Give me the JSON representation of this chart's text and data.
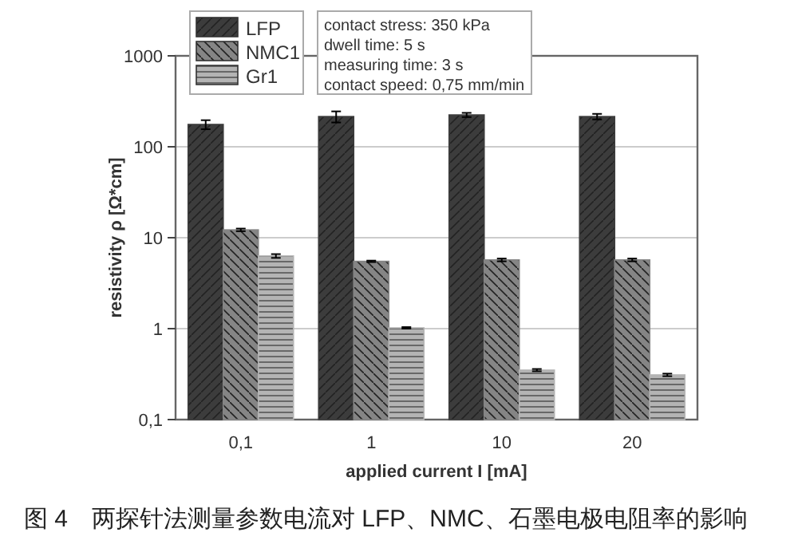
{
  "chart_data": {
    "type": "bar",
    "xlabel": "applied current I [mA]",
    "ylabel": "resistivity ρ [Ω*cm]",
    "categories": [
      "0,1",
      "1",
      "10",
      "20"
    ],
    "series": [
      {
        "name": "LFP",
        "color": "#3c3c3c",
        "values": [
          176,
          215,
          224,
          215
        ],
        "errors": [
          20,
          30,
          12,
          15
        ]
      },
      {
        "name": "NMC1",
        "color": "#858585",
        "values": [
          12.2,
          5.5,
          5.7,
          5.7
        ],
        "errors": [
          0.4,
          0.1,
          0.2,
          0.2
        ]
      },
      {
        "name": "Gr1",
        "color": "#b4b4b4",
        "values": [
          6.3,
          1.02,
          0.35,
          0.31
        ],
        "errors": [
          0.3,
          0.02,
          0.01,
          0.01
        ]
      }
    ],
    "log": "y",
    "ylim": [
      0.1,
      1000
    ],
    "yticks": [
      {
        "value": 0.1,
        "label": "0,1"
      },
      1,
      10,
      100,
      1000
    ],
    "grid": "y",
    "legend": "top left",
    "annotations": [
      "contact stress: 350 kPa\ndwell time: 5 s\nmeasuring time: 3 s\ncontact speed: 0,75 mm/min",
      "图 4　两探针法测量参数电流对 LFP、NMC、石墨电极电阻率的影响"
    ]
  }
}
